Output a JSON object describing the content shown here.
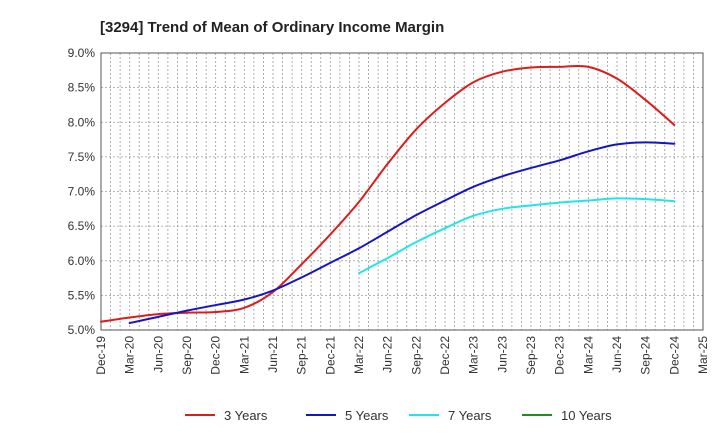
{
  "chart_data": {
    "type": "line",
    "title": "[3294]  Trend of Mean of Ordinary Income Margin",
    "xlabel": "",
    "ylabel": "",
    "x_ticks": [
      "Dec-19",
      "Mar-20",
      "Jun-20",
      "Sep-20",
      "Dec-20",
      "Mar-21",
      "Jun-21",
      "Sep-21",
      "Dec-21",
      "Mar-22",
      "Jun-22",
      "Sep-22",
      "Dec-22",
      "Mar-23",
      "Jun-23",
      "Sep-23",
      "Dec-23",
      "Mar-24",
      "Jun-24",
      "Sep-24",
      "Dec-24",
      "Mar-25"
    ],
    "y_ticks": [
      "5.0%",
      "5.5%",
      "6.0%",
      "6.5%",
      "7.0%",
      "7.5%",
      "8.0%",
      "8.5%",
      "9.0%"
    ],
    "ylim": [
      5.0,
      9.0
    ],
    "grid": true,
    "legend_position": "bottom",
    "series": [
      {
        "name": "3 Years",
        "color": "#dd1c1c",
        "x": [
          "Dec-19",
          "Mar-20",
          "Jun-20",
          "Sep-20",
          "Dec-20",
          "Mar-21",
          "Jun-21",
          "Sep-21",
          "Dec-21",
          "Mar-22",
          "Jun-22",
          "Sep-22",
          "Dec-22",
          "Mar-23",
          "Jun-23",
          "Sep-23",
          "Dec-23",
          "Mar-24",
          "Jun-24",
          "Sep-24",
          "Dec-24"
        ],
        "values": [
          5.12,
          5.18,
          5.23,
          5.25,
          5.26,
          5.32,
          5.55,
          5.95,
          6.38,
          6.85,
          7.4,
          7.9,
          8.28,
          8.58,
          8.73,
          8.79,
          8.8,
          8.8,
          8.63,
          8.32,
          7.96
        ]
      },
      {
        "name": "5 Years",
        "color": "#1515c8",
        "x": [
          "Mar-20",
          "Jun-20",
          "Sep-20",
          "Dec-20",
          "Mar-21",
          "Jun-21",
          "Sep-21",
          "Dec-21",
          "Mar-22",
          "Jun-22",
          "Sep-22",
          "Dec-22",
          "Mar-23",
          "Jun-23",
          "Sep-23",
          "Dec-23",
          "Mar-24",
          "Jun-24",
          "Sep-24",
          "Dec-24"
        ],
        "values": [
          5.1,
          5.19,
          5.28,
          5.36,
          5.44,
          5.57,
          5.76,
          5.97,
          6.18,
          6.42,
          6.66,
          6.87,
          7.07,
          7.22,
          7.34,
          7.45,
          7.58,
          7.68,
          7.71,
          7.69
        ]
      },
      {
        "name": "7 Years",
        "color": "#22e5e5",
        "x": [
          "Mar-22",
          "Jun-22",
          "Sep-22",
          "Dec-22",
          "Mar-23",
          "Jun-23",
          "Sep-23",
          "Dec-23",
          "Mar-24",
          "Jun-24",
          "Sep-24",
          "Dec-24"
        ],
        "values": [
          5.82,
          6.04,
          6.27,
          6.47,
          6.65,
          6.75,
          6.8,
          6.84,
          6.87,
          6.9,
          6.89,
          6.86
        ]
      },
      {
        "name": "10 Years",
        "color": "#228b22",
        "x": [],
        "values": []
      }
    ]
  }
}
